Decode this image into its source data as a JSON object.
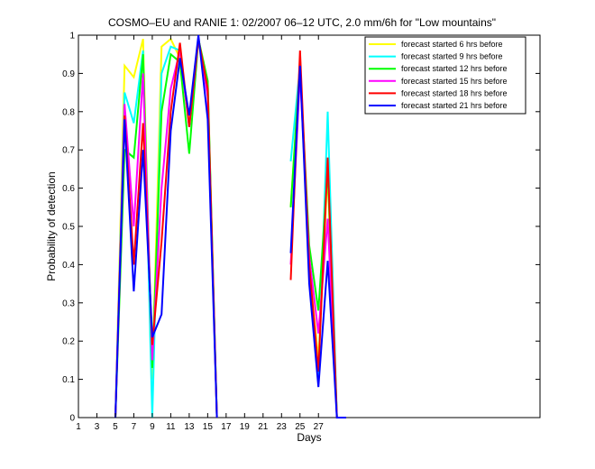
{
  "chart_data": {
    "type": "line",
    "title": "COSMO–EU and RANIE 1: 02/2007 06–12 UTC, 2.0 mm/6h for \"Low mountains\"",
    "xlabel": "Days",
    "ylabel": "Probability of detection",
    "xlim": [
      1,
      51
    ],
    "ylim": [
      0,
      1
    ],
    "xticks": [
      1,
      3,
      5,
      7,
      9,
      11,
      13,
      15,
      17,
      19,
      21,
      23,
      25,
      27
    ],
    "yticks": [
      0,
      0.1,
      0.2,
      0.3,
      0.4,
      0.5,
      0.6,
      0.7,
      0.8,
      0.9,
      1
    ],
    "ytick_labels": [
      "0",
      "0.1",
      "0.2",
      "0.3",
      "0.4",
      "0.5",
      "0.6",
      "0.7",
      "0.8",
      "0.9",
      "1"
    ],
    "grid": false,
    "legend_position": "top-right",
    "series": [
      {
        "name": "forecast started 6 hrs before",
        "color": "#ffff00",
        "segments": [
          [
            [
              5,
              0
            ],
            [
              6,
              0.92
            ],
            [
              7,
              0.89
            ],
            [
              8,
              0.99
            ],
            [
              9,
              0.1
            ],
            [
              10,
              0.97
            ],
            [
              11,
              0.99
            ],
            [
              12,
              0.94
            ],
            [
              13,
              0.77
            ],
            [
              14,
              0.99
            ],
            [
              15,
              0.88
            ],
            [
              16,
              0
            ]
          ],
          [
            [
              24,
              0.55
            ],
            [
              25,
              0.93
            ],
            [
              26,
              0.4
            ],
            [
              27,
              0.15
            ],
            [
              28,
              0.64
            ],
            [
              29,
              0
            ]
          ]
        ]
      },
      {
        "name": "forecast started 9 hrs before",
        "color": "#00ffff",
        "segments": [
          [
            [
              5,
              0
            ],
            [
              6,
              0.85
            ],
            [
              7,
              0.77
            ],
            [
              8,
              0.96
            ],
            [
              9,
              0
            ],
            [
              10,
              0.9
            ],
            [
              11,
              0.97
            ],
            [
              12,
              0.96
            ],
            [
              13,
              0.76
            ],
            [
              14,
              0.99
            ],
            [
              15,
              0.87
            ],
            [
              16,
              0
            ]
          ],
          [
            [
              24,
              0.67
            ],
            [
              25,
              0.92
            ],
            [
              26,
              0.4
            ],
            [
              27,
              0.1
            ],
            [
              28,
              0.8
            ],
            [
              29,
              0
            ]
          ]
        ]
      },
      {
        "name": "forecast started 12 hrs before",
        "color": "#00ff00",
        "segments": [
          [
            [
              5,
              0
            ],
            [
              6,
              0.7
            ],
            [
              7,
              0.68
            ],
            [
              8,
              0.95
            ],
            [
              9,
              0.13
            ],
            [
              10,
              0.8
            ],
            [
              11,
              0.95
            ],
            [
              12,
              0.93
            ],
            [
              13,
              0.69
            ],
            [
              14,
              0.99
            ],
            [
              15,
              0.88
            ],
            [
              16,
              0
            ]
          ],
          [
            [
              24,
              0.55
            ],
            [
              25,
              0.92
            ],
            [
              26,
              0.45
            ],
            [
              27,
              0.28
            ],
            [
              28,
              0.65
            ],
            [
              29,
              0
            ]
          ]
        ]
      },
      {
        "name": "forecast started 15 hrs before",
        "color": "#ff00ff",
        "segments": [
          [
            [
              5,
              0
            ],
            [
              6,
              0.82
            ],
            [
              7,
              0.5
            ],
            [
              8,
              0.9
            ],
            [
              9,
              0.15
            ],
            [
              10,
              0.6
            ],
            [
              11,
              0.86
            ],
            [
              12,
              0.96
            ],
            [
              13,
              0.76
            ],
            [
              14,
              0.99
            ],
            [
              15,
              0.84
            ],
            [
              16,
              0
            ]
          ],
          [
            [
              24,
              0.4
            ],
            [
              25,
              0.9
            ],
            [
              26,
              0.42
            ],
            [
              27,
              0.22
            ],
            [
              28,
              0.52
            ],
            [
              29,
              0
            ]
          ]
        ]
      },
      {
        "name": "forecast started 18 hrs before",
        "color": "#ff0000",
        "segments": [
          [
            [
              5,
              0
            ],
            [
              6,
              0.79
            ],
            [
              7,
              0.4
            ],
            [
              8,
              0.77
            ],
            [
              9,
              0.19
            ],
            [
              10,
              0.46
            ],
            [
              11,
              0.8
            ],
            [
              12,
              0.98
            ],
            [
              13,
              0.76
            ],
            [
              14,
              0.99
            ],
            [
              15,
              0.86
            ],
            [
              16,
              0
            ]
          ],
          [
            [
              24,
              0.36
            ],
            [
              25,
              0.96
            ],
            [
              26,
              0.4
            ],
            [
              27,
              0.12
            ],
            [
              28,
              0.68
            ],
            [
              29,
              0
            ]
          ]
        ]
      },
      {
        "name": "forecast started 21 hrs before",
        "color": "#0000ff",
        "segments": [
          [
            [
              5,
              0
            ],
            [
              6,
              0.78
            ],
            [
              7,
              0.33
            ],
            [
              8,
              0.7
            ],
            [
              9,
              0.21
            ],
            [
              10,
              0.27
            ],
            [
              11,
              0.75
            ],
            [
              12,
              0.94
            ],
            [
              13,
              0.79
            ],
            [
              14,
              1.0
            ],
            [
              15,
              0.78
            ],
            [
              16,
              0
            ]
          ],
          [
            [
              24,
              0.43
            ],
            [
              25,
              0.92
            ],
            [
              26,
              0.35
            ],
            [
              27,
              0.08
            ],
            [
              28,
              0.41
            ],
            [
              29,
              0
            ],
            [
              30,
              0
            ]
          ]
        ]
      }
    ]
  }
}
